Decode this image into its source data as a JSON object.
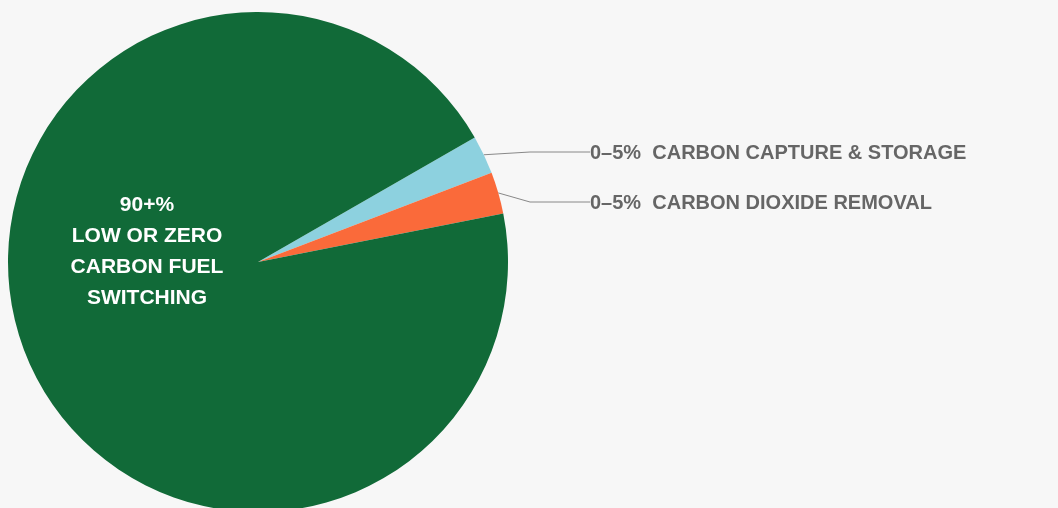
{
  "chart_data": {
    "type": "pie",
    "categories": [
      "0–5%  CARBON CAPTURE & STORAGE",
      "0–5%  CARBON DIOXIDE REMOVAL",
      "90+%\nLOW OR ZERO\nCARBON FUEL\nSWITCHING"
    ],
    "values": [
      2.5,
      2.7,
      94.8
    ],
    "colors": [
      "#8dd1df",
      "#fa6a3a",
      "#116a38"
    ],
    "legend": false
  }
}
